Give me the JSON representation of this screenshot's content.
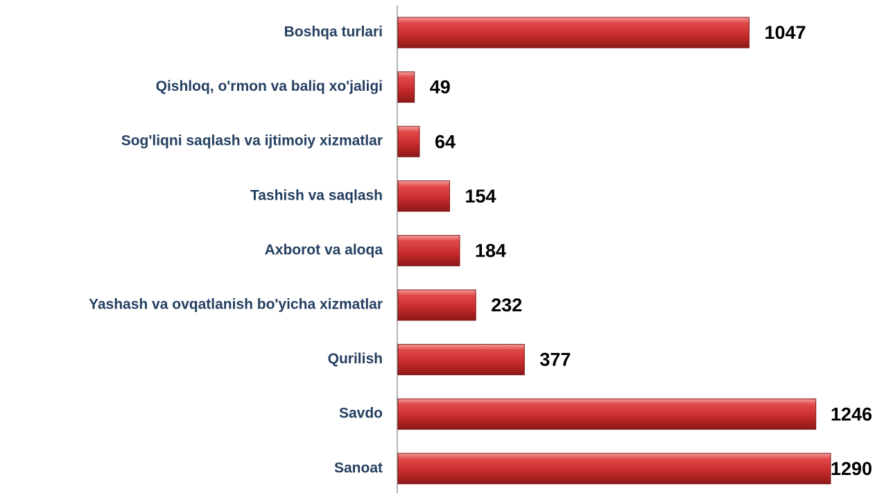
{
  "chart_data": {
    "type": "bar",
    "orientation": "horizontal",
    "categories": [
      "Boshqa turlari",
      "Qishloq, o'rmon va baliq xo'jaligi",
      "Sog'liqni saqlash va ijtimoiy xizmatlar",
      "Tashish va saqlash",
      "Axborot va aloqa",
      "Yashash va ovqatlanish bo'yicha xizmatlar",
      "Qurilish",
      "Savdo",
      "Sanoat"
    ],
    "values": [
      1047,
      49,
      64,
      154,
      184,
      232,
      377,
      1246,
      1290
    ],
    "color": "#c0282a"
  }
}
